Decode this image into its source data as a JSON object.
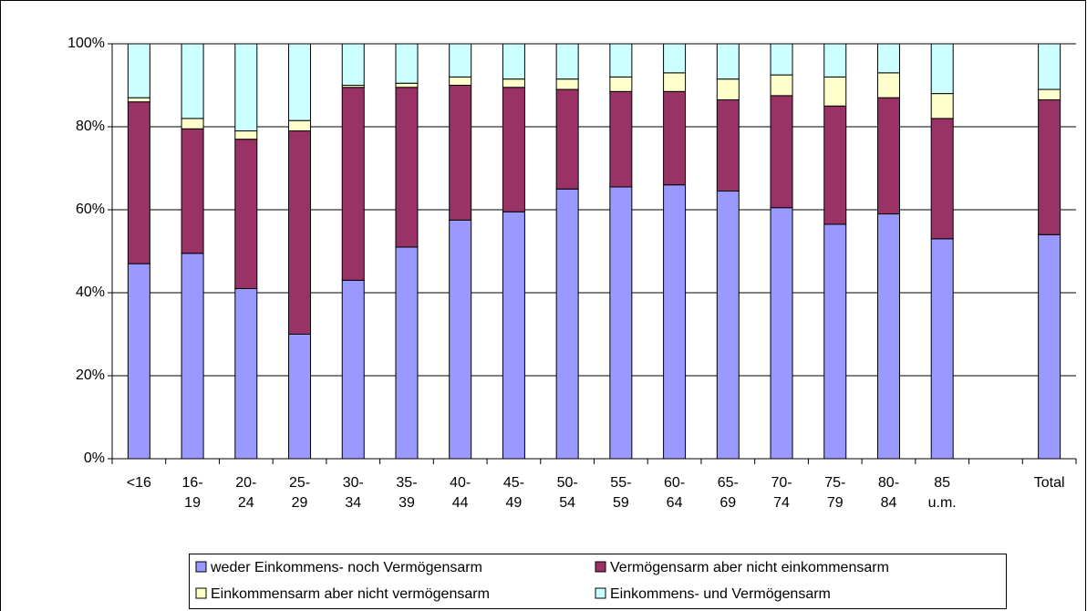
{
  "chart_data": {
    "type": "stacked_bar",
    "categories": [
      "<16",
      "16-\n19",
      "20-\n24",
      "25-\n29",
      "30-\n34",
      "35-\n39",
      "40-\n44",
      "45-\n49",
      "50-\n54",
      "55-\n59",
      "60-\n64",
      "65-\n69",
      "70-\n74",
      "75-\n79",
      "80-\n84",
      "85\nu.m.",
      null,
      "Total"
    ],
    "series": [
      {
        "name": "weder Einkommens- noch Vermögensarm",
        "color": "#9999ff",
        "values": [
          47,
          49.5,
          41,
          30,
          43,
          51,
          57.5,
          59.5,
          65,
          65.5,
          66,
          64.5,
          60.5,
          56.5,
          59,
          53,
          null,
          54
        ]
      },
      {
        "name": "Vermögensarm aber nicht einkommensarm",
        "color": "#993366",
        "values": [
          39,
          30,
          36,
          49,
          46.5,
          38.5,
          32.5,
          30,
          24,
          23,
          22.5,
          22,
          27,
          28.5,
          28,
          29,
          null,
          32.5
        ]
      },
      {
        "name": "Einkommensarm aber nicht vermögensarm",
        "color": "#ffffcc",
        "values": [
          1,
          2.5,
          2,
          2.5,
          0.5,
          1,
          2,
          2,
          2.5,
          3.5,
          4.5,
          5,
          5,
          7,
          6,
          6,
          null,
          2.5
        ]
      },
      {
        "name": "Einkommens- und Vermögensarm",
        "color": "#ccffff",
        "values": [
          13,
          18,
          21,
          18.5,
          10,
          9.5,
          8,
          8.5,
          8.5,
          8,
          7,
          8.5,
          7.5,
          8,
          7,
          12,
          null,
          11
        ]
      }
    ],
    "ylim": [
      0,
      100
    ],
    "yticks": [
      {
        "value": 0,
        "label": "0%"
      },
      {
        "value": 20,
        "label": "20%"
      },
      {
        "value": 40,
        "label": "40%"
      },
      {
        "value": 60,
        "label": "60%"
      },
      {
        "value": 80,
        "label": "80%"
      },
      {
        "value": 100,
        "label": "100%"
      }
    ],
    "grid": true
  }
}
